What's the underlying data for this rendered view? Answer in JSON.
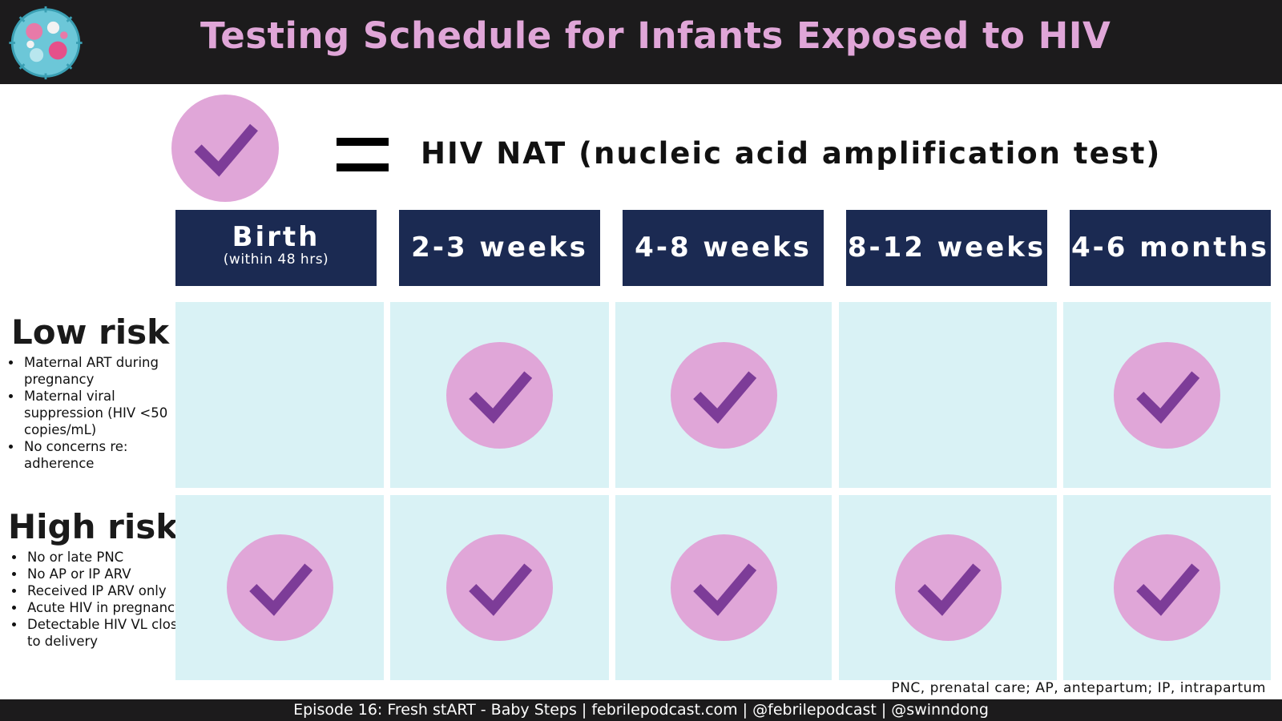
{
  "title": "Testing Schedule for Infants Exposed to HIV",
  "logo_icon": "podcast-microbe-logo-icon",
  "legend": {
    "symbol": "check-circle-icon",
    "equals": "=",
    "text": "HIV NAT (nucleic acid amplification test)"
  },
  "colors": {
    "header_bg": "#1c1b1c",
    "title": "#e0a6d8",
    "column_header_bg": "#1b2a52",
    "cell_bg": "#d9f2f5",
    "check_circle": "#e0a6d8",
    "check_mark": "#7d3c98"
  },
  "columns": [
    {
      "label": "Birth",
      "sub": "(within 48 hrs)"
    },
    {
      "label": "2-3 weeks"
    },
    {
      "label": "4-8 weeks"
    },
    {
      "label": "8-12 weeks"
    },
    {
      "label": "4-6 months"
    }
  ],
  "rows": [
    {
      "label": "Low risk",
      "criteria": [
        "Maternal ART during pregnancy",
        "Maternal viral suppression (HIV <50 copies/mL)",
        "No concerns re: adherence"
      ],
      "tests": [
        false,
        true,
        true,
        false,
        true
      ]
    },
    {
      "label": "High risk",
      "criteria": [
        "No or late PNC",
        "No AP or IP ARV",
        "Received IP ARV only",
        "Acute HIV in pregnancy",
        "Detectable HIV VL close to delivery"
      ],
      "tests": [
        true,
        true,
        true,
        true,
        true
      ]
    }
  ],
  "footnote": "PNC, prenatal care; AP, antepartum; IP, intrapartum",
  "footer": "Episode 16: Fresh stART - Baby Steps | febrilepodcast.com | @febrilepodcast | @swinndong"
}
